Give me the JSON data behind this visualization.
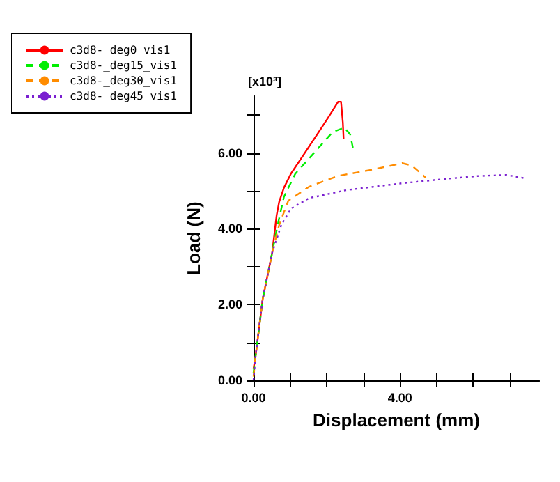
{
  "chart_data": {
    "type": "line",
    "xlabel": "Displacement (mm)",
    "ylabel": "Load (N)",
    "annotations": [
      "[x10³]"
    ],
    "xlim": [
      0,
      7.8
    ],
    "ylim": [
      0,
      7.5
    ],
    "xticks": [
      {
        "value": 0,
        "label": "0.00"
      },
      {
        "value": 1,
        "label": null
      },
      {
        "value": 2,
        "label": null
      },
      {
        "value": 3,
        "label": null
      },
      {
        "value": 4,
        "label": "4.00"
      },
      {
        "value": 5,
        "label": null
      },
      {
        "value": 6,
        "label": null
      },
      {
        "value": 7,
        "label": null
      }
    ],
    "yticks": [
      {
        "value": 0,
        "label": "0.00"
      },
      {
        "value": 1,
        "label": null
      },
      {
        "value": 2,
        "label": "2.00"
      },
      {
        "value": 3,
        "label": null
      },
      {
        "value": 4,
        "label": "4.00"
      },
      {
        "value": 5,
        "label": null
      },
      {
        "value": 6,
        "label": "6.00"
      },
      {
        "value": 7,
        "label": null
      }
    ],
    "grid": false,
    "legend": "top left",
    "marker": "none",
    "series": [
      {
        "name": "c3d8-_deg0_vis1",
        "color": "#ff0000",
        "line_style": "solid",
        "x": [
          0,
          0.06,
          0.25,
          0.51,
          0.63,
          0.7,
          0.83,
          1.02,
          1.4,
          1.78,
          2.03,
          2.31,
          2.39,
          2.44,
          2.46
        ],
        "values": [
          0.3,
          0.67,
          2.14,
          3.37,
          4.35,
          4.71,
          5.08,
          5.45,
          6.0,
          6.55,
          6.92,
          7.35,
          7.35,
          6.8,
          6.37
        ]
      },
      {
        "name": "c3d8-_deg15_vis1",
        "color": "#00ee00",
        "line_style": "dashed",
        "x": [
          0,
          0.06,
          0.25,
          0.51,
          0.66,
          0.83,
          1.14,
          1.65,
          2.16,
          2.48,
          2.64,
          2.73
        ],
        "values": [
          0.2,
          0.67,
          2.14,
          3.37,
          4.1,
          4.84,
          5.45,
          6.0,
          6.55,
          6.67,
          6.49,
          6.06
        ]
      },
      {
        "name": "c3d8-_deg30_vis1",
        "color": "#ff8c00",
        "line_style": "dashed",
        "x": [
          0,
          0.06,
          0.25,
          0.51,
          0.7,
          0.95,
          1.52,
          2.29,
          3.3,
          4.06,
          4.32,
          4.7
        ],
        "values": [
          0.1,
          0.67,
          2.14,
          3.37,
          4.1,
          4.74,
          5.11,
          5.39,
          5.57,
          5.73,
          5.67,
          5.35
        ]
      },
      {
        "name": "c3d8-_deg45_vis1",
        "color": "#7a1fd0",
        "line_style": "dotted",
        "x": [
          0,
          0.06,
          0.25,
          0.51,
          0.76,
          1.02,
          1.52,
          2.54,
          4.06,
          5.08,
          6.1,
          6.92,
          7.43
        ],
        "values": [
          0,
          0.67,
          2.14,
          3.37,
          4.1,
          4.53,
          4.81,
          5.02,
          5.2,
          5.3,
          5.39,
          5.42,
          5.33
        ]
      }
    ]
  }
}
